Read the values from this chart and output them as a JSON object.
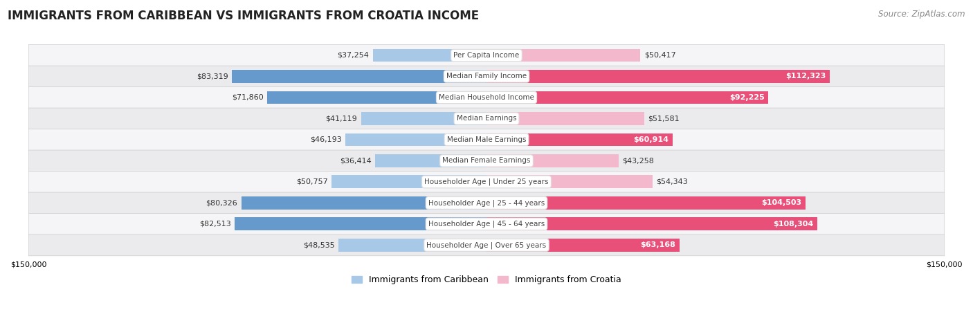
{
  "title": "IMMIGRANTS FROM CARIBBEAN VS IMMIGRANTS FROM CROATIA INCOME",
  "source": "Source: ZipAtlas.com",
  "categories": [
    "Per Capita Income",
    "Median Family Income",
    "Median Household Income",
    "Median Earnings",
    "Median Male Earnings",
    "Median Female Earnings",
    "Householder Age | Under 25 years",
    "Householder Age | 25 - 44 years",
    "Householder Age | 45 - 64 years",
    "Householder Age | Over 65 years"
  ],
  "caribbean_values": [
    37254,
    83319,
    71860,
    41119,
    46193,
    36414,
    50757,
    80326,
    82513,
    48535
  ],
  "croatia_values": [
    50417,
    112323,
    92225,
    51581,
    60914,
    43258,
    54343,
    104503,
    108304,
    63168
  ],
  "caribbean_color_light": "#a8c8e8",
  "caribbean_color_dark": "#6699cc",
  "croatia_color_light": "#f4b8cc",
  "croatia_color_dark": "#e8507a",
  "max_value": 150000,
  "background_color": "#ffffff",
  "row_bg_light": "#f5f5f7",
  "row_bg_dark": "#ebebee",
  "legend_caribbean": "Immigrants from Caribbean",
  "legend_croatia": "Immigrants from Croatia",
  "title_fontsize": 12,
  "source_fontsize": 8.5,
  "bar_label_fontsize": 8,
  "category_fontsize": 7.5,
  "axis_label_fontsize": 8,
  "dark_threshold": 60000
}
